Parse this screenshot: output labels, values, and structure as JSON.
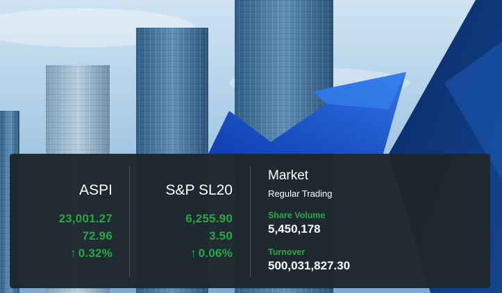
{
  "colors": {
    "panel_bg": "#1d262c",
    "positive": "#27a844",
    "text": "#ffffff"
  },
  "background": {
    "image": "city-skyline-with-rising-blue-arrow"
  },
  "indices": [
    {
      "name": "ASPI",
      "value": "23,001.27",
      "change": "72.96",
      "change_percent": "0.32%",
      "direction_icon": "arrow-up-icon"
    },
    {
      "name": "S&P SL20",
      "value": "6,255.90",
      "change": "3.50",
      "change_percent": "0.06%",
      "direction_icon": "arrow-up-icon"
    }
  ],
  "market": {
    "title": "Market",
    "status": "Regular Trading",
    "share_volume_label": "Share Volume",
    "share_volume": "5,450,178",
    "turnover_label": "Turnover",
    "turnover": "500,031,827.30"
  }
}
